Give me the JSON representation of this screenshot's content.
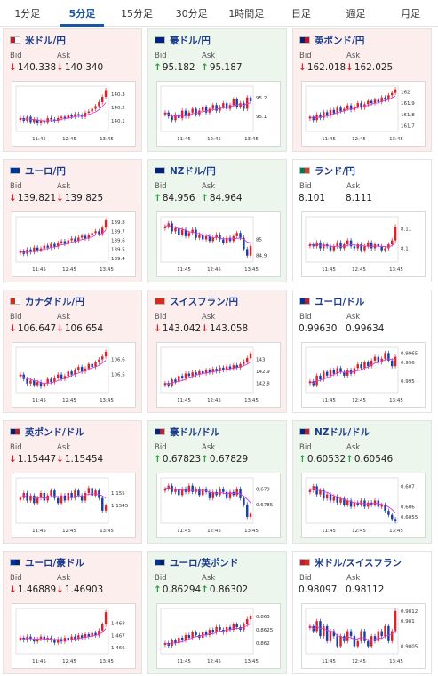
{
  "tabs": [
    {
      "label": "1分足",
      "active": false
    },
    {
      "label": "5分足",
      "active": true
    },
    {
      "label": "15分足",
      "active": false
    },
    {
      "label": "30分足",
      "active": false
    },
    {
      "label": "1時間足",
      "active": false
    },
    {
      "label": "日足",
      "active": false
    },
    {
      "label": "週足",
      "active": false
    },
    {
      "label": "月足",
      "active": false
    }
  ],
  "labels": {
    "bid": "Bid",
    "ask": "Ask"
  },
  "colors": {
    "down_arrow": "#d6262b",
    "up_arrow": "#2e9b3c",
    "candle_up": "#d6262b",
    "candle_down": "#1a3fa8",
    "ma_line": "#d63cd6"
  },
  "cards": [
    {
      "pair": "米ドル/円",
      "flag": [
        "#b22234",
        "#ffffff"
      ],
      "trend": "down",
      "bid": "140.338",
      "ask": "140.340",
      "chart_data": {
        "type": "candlestick",
        "x_ticks": [
          "11:45",
          "12:45",
          "13:45"
        ],
        "y_ticks": [
          "140.1",
          "140.2",
          "140.3"
        ],
        "ylim": [
          140.02,
          140.36
        ],
        "closes": [
          140.12,
          140.1,
          140.13,
          140.09,
          140.11,
          140.08,
          140.1,
          140.09,
          140.12,
          140.11,
          140.1,
          140.12,
          140.13,
          140.12,
          140.14,
          140.13,
          140.15,
          140.14,
          140.13,
          140.16,
          140.17,
          140.19,
          140.21,
          140.24,
          140.28,
          140.33
        ]
      }
    },
    {
      "pair": "豪ドル/円",
      "flag": [
        "#00247d",
        "#00247d"
      ],
      "trend": "up",
      "bid": "95.182",
      "ask": "95.187",
      "chart_data": {
        "type": "candlestick",
        "x_ticks": [
          "11:45",
          "12:45",
          "13:45"
        ],
        "y_ticks": [
          "95.1",
          "95.2"
        ],
        "ylim": [
          95.02,
          95.26
        ],
        "closes": [
          95.12,
          95.1,
          95.08,
          95.11,
          95.09,
          95.13,
          95.1,
          95.12,
          95.14,
          95.11,
          95.13,
          95.15,
          95.12,
          95.14,
          95.16,
          95.13,
          95.15,
          95.17,
          95.14,
          95.16,
          95.19,
          95.15,
          95.17,
          95.14,
          95.2,
          95.18
        ]
      }
    },
    {
      "pair": "英ポンド/円",
      "flag": [
        "#012169",
        "#c8102e"
      ],
      "trend": "down",
      "bid": "162.018",
      "ask": "162.025",
      "chart_data": {
        "type": "candlestick",
        "x_ticks": [
          "11:45",
          "12:45",
          "13:45"
        ],
        "y_ticks": [
          "161.7",
          "161.8",
          "161.9",
          "162"
        ],
        "ylim": [
          161.65,
          162.05
        ],
        "closes": [
          161.78,
          161.75,
          161.8,
          161.77,
          161.82,
          161.79,
          161.84,
          161.81,
          161.86,
          161.83,
          161.85,
          161.88,
          161.84,
          161.87,
          161.9,
          161.86,
          161.89,
          161.92,
          161.9,
          161.93,
          161.91,
          161.95,
          161.93,
          161.97,
          161.99,
          162.02
        ]
      }
    },
    {
      "pair": "ユーロ/円",
      "flag": [
        "#003399",
        "#003399"
      ],
      "trend": "down",
      "bid": "139.821",
      "ask": "139.825",
      "chart_data": {
        "type": "candlestick",
        "x_ticks": [
          "11:45",
          "12:45",
          "13:45"
        ],
        "y_ticks": [
          "139.4",
          "139.5",
          "139.6",
          "139.7",
          "139.8"
        ],
        "ylim": [
          139.36,
          139.86
        ],
        "closes": [
          139.48,
          139.45,
          139.5,
          139.47,
          139.52,
          139.49,
          139.51,
          139.54,
          139.52,
          139.56,
          139.53,
          139.57,
          139.59,
          139.56,
          139.6,
          139.62,
          139.59,
          139.63,
          139.65,
          139.62,
          139.66,
          139.68,
          139.7,
          139.67,
          139.74,
          139.82
        ]
      }
    },
    {
      "pair": "NZドル/円",
      "flag": [
        "#00247d",
        "#00247d"
      ],
      "trend": "up",
      "bid": "84.956",
      "ask": "84.964",
      "chart_data": {
        "type": "candlestick",
        "x_ticks": [
          "11:45",
          "12:45",
          "13:45"
        ],
        "y_ticks": [
          "84.9",
          "85"
        ],
        "ylim": [
          84.86,
          85.14
        ],
        "closes": [
          85.08,
          85.1,
          85.05,
          85.07,
          85.03,
          85.06,
          85.02,
          85.04,
          85.06,
          85.01,
          85.03,
          85.0,
          85.02,
          84.99,
          85.01,
          85.03,
          85.0,
          84.98,
          85.01,
          84.99,
          85.02,
          85.04,
          85.01,
          84.94,
          84.9,
          84.96
        ]
      }
    },
    {
      "pair": "ランド/円",
      "flag": [
        "#007a4d",
        "#de3831"
      ],
      "trend": "flat",
      "bid": "8.101",
      "ask": "8.111",
      "chart_data": {
        "type": "candlestick",
        "x_ticks": [
          "11:45",
          "12:45",
          "13:45"
        ],
        "y_ticks": [
          "8.1",
          "8.11"
        ],
        "ylim": [
          8.093,
          8.116
        ],
        "closes": [
          8.102,
          8.101,
          8.103,
          8.1,
          8.102,
          8.101,
          8.099,
          8.101,
          8.103,
          8.1,
          8.102,
          8.104,
          8.101,
          8.1,
          8.102,
          8.099,
          8.101,
          8.103,
          8.1,
          8.102,
          8.101,
          8.099,
          8.1,
          8.102,
          8.104,
          8.111
        ]
      }
    },
    {
      "pair": "カナダドル/円",
      "flag": [
        "#d52b1e",
        "#ffffff"
      ],
      "trend": "down",
      "bid": "106.647",
      "ask": "106.654",
      "chart_data": {
        "type": "candlestick",
        "x_ticks": [
          "11:45",
          "12:45",
          "13:45"
        ],
        "y_ticks": [
          "106.5",
          "106.6"
        ],
        "ylim": [
          106.38,
          106.68
        ],
        "closes": [
          106.5,
          106.47,
          106.44,
          106.46,
          106.43,
          106.45,
          106.42,
          106.44,
          106.47,
          106.45,
          106.48,
          106.5,
          106.47,
          106.49,
          106.52,
          106.5,
          106.53,
          106.55,
          106.52,
          106.54,
          106.57,
          106.55,
          106.58,
          106.6,
          106.62,
          106.65
        ]
      }
    },
    {
      "pair": "スイスフラン/円",
      "flag": [
        "#d52b1e",
        "#d52b1e"
      ],
      "trend": "down",
      "bid": "143.042",
      "ask": "143.058",
      "chart_data": {
        "type": "candlestick",
        "x_ticks": [
          "11:45",
          "12:45",
          "13:45"
        ],
        "y_ticks": [
          "142.8",
          "142.9",
          "143"
        ],
        "ylim": [
          142.72,
          143.1
        ],
        "closes": [
          142.8,
          142.78,
          142.83,
          142.81,
          142.86,
          142.84,
          142.88,
          142.86,
          142.89,
          142.87,
          142.9,
          142.88,
          142.91,
          142.89,
          142.92,
          142.9,
          142.93,
          142.91,
          142.94,
          142.92,
          142.95,
          142.93,
          142.96,
          142.98,
          143.01,
          143.05
        ]
      }
    },
    {
      "pair": "ユーロ/ドル",
      "flag": [
        "#003399",
        "#b22234"
      ],
      "trend": "flat",
      "bid": "0.99630",
      "ask": "0.99634",
      "chart_data": {
        "type": "candlestick",
        "x_ticks": [
          "11:45",
          "12:45",
          "13:45"
        ],
        "y_ticks": [
          "0.995",
          "0.996",
          "0.9965"
        ],
        "ylim": [
          0.9944,
          0.9968
        ],
        "closes": [
          0.995,
          0.9948,
          0.9953,
          0.9951,
          0.9955,
          0.9953,
          0.9956,
          0.9954,
          0.9957,
          0.9955,
          0.9953,
          0.9956,
          0.9954,
          0.9957,
          0.9959,
          0.9957,
          0.996,
          0.9958,
          0.9961,
          0.9963,
          0.996,
          0.9962,
          0.9965,
          0.9961,
          0.9958,
          0.9963
        ]
      }
    },
    {
      "pair": "英ポンド/ドル",
      "flag": [
        "#012169",
        "#b22234"
      ],
      "trend": "down",
      "bid": "1.15447",
      "ask": "1.15454",
      "chart_data": {
        "type": "candlestick",
        "x_ticks": [
          "11:45",
          "12:45",
          "13:45"
        ],
        "y_ticks": [
          "1.1545",
          "1.155"
        ],
        "ylim": [
          1.1538,
          1.1556
        ],
        "closes": [
          1.1548,
          1.155,
          1.1547,
          1.1549,
          1.1546,
          1.1548,
          1.155,
          1.1547,
          1.1549,
          1.1551,
          1.1548,
          1.1546,
          1.1549,
          1.1547,
          1.155,
          1.1548,
          1.1551,
          1.1549,
          1.1547,
          1.155,
          1.1552,
          1.1549,
          1.1551,
          1.1548,
          1.1543,
          1.1545
        ]
      }
    },
    {
      "pair": "豪ドル/ドル",
      "flag": [
        "#00247d",
        "#b22234"
      ],
      "trend": "up",
      "bid": "0.67823",
      "ask": "0.67829",
      "chart_data": {
        "type": "candlestick",
        "x_ticks": [
          "11:45",
          "12:45",
          "13:45"
        ],
        "y_ticks": [
          "0.6785",
          "0.679"
        ],
        "ylim": [
          0.6779,
          0.67935
        ],
        "closes": [
          0.679,
          0.6791,
          0.6789,
          0.679,
          0.6788,
          0.679,
          0.6789,
          0.6791,
          0.6789,
          0.679,
          0.6788,
          0.679,
          0.6789,
          0.6787,
          0.6789,
          0.6788,
          0.679,
          0.6789,
          0.6787,
          0.6789,
          0.6788,
          0.679,
          0.6787,
          0.6785,
          0.6781,
          0.6782
        ]
      }
    },
    {
      "pair": "NZドル/ドル",
      "flag": [
        "#00247d",
        "#b22234"
      ],
      "trend": "up",
      "bid": "0.60532",
      "ask": "0.60546",
      "chart_data": {
        "type": "candlestick",
        "x_ticks": [
          "11:45",
          "12:45",
          "13:45"
        ],
        "y_ticks": [
          "0.6055",
          "0.606",
          "0.607"
        ],
        "ylim": [
          0.6052,
          0.6074
        ],
        "closes": [
          0.6068,
          0.607,
          0.6066,
          0.6068,
          0.6064,
          0.6066,
          0.6063,
          0.6065,
          0.6062,
          0.6064,
          0.6061,
          0.6063,
          0.606,
          0.6062,
          0.6061,
          0.6063,
          0.606,
          0.6062,
          0.6061,
          0.6063,
          0.606,
          0.6061,
          0.6058,
          0.6056,
          0.6054,
          0.6053
        ]
      }
    },
    {
      "pair": "ユーロ/豪ドル",
      "flag": [
        "#003399",
        "#00247d"
      ],
      "trend": "down",
      "bid": "1.46889",
      "ask": "1.46903",
      "chart_data": {
        "type": "candlestick",
        "x_ticks": [
          "11:45",
          "12:45",
          "13:45"
        ],
        "y_ticks": [
          "1.466",
          "1.467",
          "1.468"
        ],
        "ylim": [
          1.4655,
          1.4692
        ],
        "closes": [
          1.4668,
          1.4666,
          1.4669,
          1.4667,
          1.4665,
          1.4667,
          1.4669,
          1.4666,
          1.4668,
          1.4666,
          1.4664,
          1.4667,
          1.4665,
          1.4668,
          1.4666,
          1.4669,
          1.4667,
          1.467,
          1.4668,
          1.4671,
          1.4669,
          1.4672,
          1.467,
          1.4674,
          1.4679,
          1.4689
        ]
      }
    },
    {
      "pair": "ユーロ/英ポンド",
      "flag": [
        "#003399",
        "#012169"
      ],
      "trend": "up",
      "bid": "0.86294",
      "ask": "0.86302",
      "chart_data": {
        "type": "candlestick",
        "x_ticks": [
          "11:45",
          "12:45",
          "13:45"
        ],
        "y_ticks": [
          "0.862",
          "0.8625",
          "0.863"
        ],
        "ylim": [
          0.8616,
          0.8633
        ],
        "closes": [
          0.862,
          0.8619,
          0.8621,
          0.862,
          0.8622,
          0.8621,
          0.8623,
          0.8622,
          0.8624,
          0.8623,
          0.8622,
          0.8624,
          0.8623,
          0.8625,
          0.8624,
          0.8626,
          0.8625,
          0.8624,
          0.8626,
          0.8625,
          0.8627,
          0.8626,
          0.8625,
          0.8627,
          0.8629,
          0.863
        ]
      }
    },
    {
      "pair": "米ドル/スイスフラン",
      "flag": [
        "#b22234",
        "#d52b1e"
      ],
      "trend": "flat",
      "bid": "0.98097",
      "ask": "0.98112",
      "chart_data": {
        "type": "candlestick",
        "x_ticks": [
          "11:45",
          "12:45",
          "13:45"
        ],
        "y_ticks": [
          "0.9805",
          "0.981",
          "0.9812"
        ],
        "ylim": [
          0.98035,
          0.98125
        ],
        "closes": [
          0.9809,
          0.9808,
          0.981,
          0.9807,
          0.9809,
          0.9806,
          0.9808,
          0.9807,
          0.9805,
          0.9807,
          0.9806,
          0.9808,
          0.9807,
          0.9805,
          0.9806,
          0.9808,
          0.9806,
          0.9805,
          0.9807,
          0.9806,
          0.9808,
          0.9807,
          0.9809,
          0.9806,
          0.9808,
          0.9812
        ]
      }
    }
  ]
}
